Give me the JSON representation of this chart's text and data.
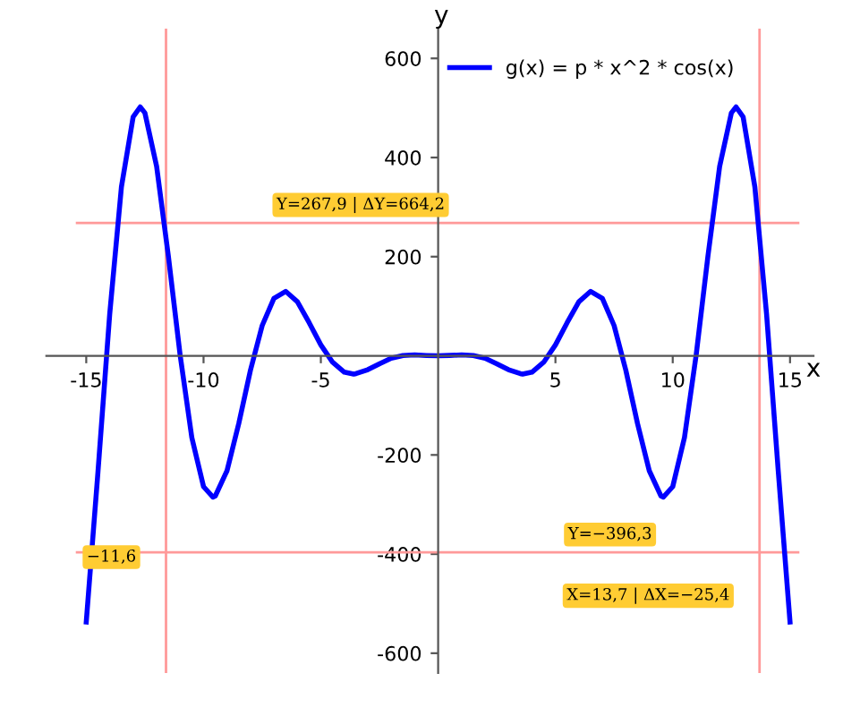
{
  "chart_data": {
    "type": "line",
    "xlabel": "x",
    "ylabel": "y",
    "xlim": [
      -16.7,
      16.0
    ],
    "ylim": [
      -640,
      660
    ],
    "xticks": [
      -15,
      -10,
      -5,
      5,
      10,
      15
    ],
    "yticks": [
      -600,
      -400,
      -200,
      200,
      400,
      600
    ],
    "grid": false,
    "legend": "top right",
    "marker": "none",
    "line_style": "solid",
    "series": [
      {
        "name": "g(x) = p * x^2 * cos(x)",
        "color": "#0000ff",
        "x": [
          -15,
          -14.5,
          -14,
          -13.5,
          -13,
          -12.7,
          -12.5,
          -12,
          -11.5,
          -11,
          -10.5,
          -10,
          -9.6,
          -9.5,
          -9,
          -8.5,
          -8,
          -7.5,
          -7,
          -6.5,
          -6,
          -5.5,
          -5,
          -4.5,
          -4,
          -3.6,
          -3.5,
          -3,
          -2.5,
          -2,
          -1.5,
          -1,
          -0.5,
          0,
          0.5,
          1,
          1.5,
          2,
          2.5,
          3,
          3.5,
          3.6,
          4,
          4.5,
          5,
          5.5,
          6,
          6.5,
          7,
          7.5,
          8,
          8.5,
          9,
          9.5,
          9.6,
          10,
          10.5,
          11,
          11.5,
          12,
          12.5,
          12.7,
          13,
          13.5,
          14,
          14.5,
          15
        ],
        "values": [
          -537,
          -234,
          84,
          341,
          482,
          502,
          490,
          382,
          201,
          2,
          -165,
          -264,
          -285,
          -283,
          -232,
          -137,
          -29,
          61,
          116,
          130,
          109,
          67,
          22,
          -13,
          -33,
          -37,
          -36,
          -28,
          -16,
          -5,
          0.5,
          1.7,
          0.7,
          0,
          0.7,
          1.7,
          0.5,
          -5,
          -16,
          -28,
          -36,
          -37,
          -33,
          -13,
          22,
          67,
          109,
          130,
          116,
          61,
          -29,
          -137,
          -232,
          -283,
          -285,
          -264,
          -165,
          2,
          201,
          382,
          490,
          502,
          482,
          341,
          84,
          -234,
          -537
        ]
      }
    ],
    "ref_lines": [
      {
        "axis": "y",
        "value": 267.9,
        "label": "Y=267,9 | ΔY=664,2",
        "color": "#ff9999"
      },
      {
        "axis": "x",
        "value": -11.6,
        "label": "−11,6",
        "color": "#ff9999"
      },
      {
        "axis": "y",
        "value": -396.3,
        "label": "Y=−396,3",
        "color": "#ff9999"
      },
      {
        "axis": "x",
        "value": 13.7,
        "label": "X=13,7 | ΔX=−25,4",
        "color": "#ff9999"
      }
    ]
  }
}
